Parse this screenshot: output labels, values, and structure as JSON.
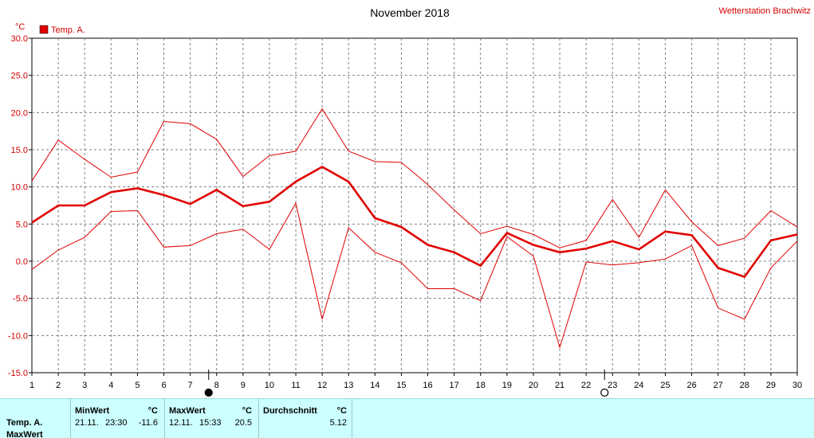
{
  "header": {
    "title": "November 2018",
    "station": "Wetterstation Brachwitz",
    "unit": "°C"
  },
  "chart_data": {
    "type": "line",
    "title": "November 2018",
    "ylabel": "°C",
    "xlim": [
      1,
      30
    ],
    "ylim": [
      -15,
      30
    ],
    "x_ticks": [
      1,
      2,
      3,
      4,
      5,
      6,
      7,
      8,
      9,
      10,
      11,
      12,
      13,
      14,
      15,
      16,
      17,
      18,
      19,
      20,
      21,
      22,
      23,
      24,
      25,
      26,
      27,
      28,
      29,
      30
    ],
    "y_ticks": [
      -15,
      -10,
      -5,
      0,
      5,
      10,
      15,
      20,
      25,
      30
    ],
    "y_tick_labels": [
      "-15.0",
      "-10.0",
      "-5.0",
      "0.0",
      "5.0",
      "10.0",
      "15.0",
      "20.0",
      "25.0",
      "30.0"
    ],
    "grid": true,
    "legend": {
      "position": "top-left",
      "entries": [
        "Temp. A."
      ]
    },
    "colors": {
      "series": "#e00000",
      "grid": "#808080",
      "axis_text": "#d40000"
    },
    "x": [
      1,
      2,
      3,
      4,
      5,
      6,
      7,
      8,
      9,
      10,
      11,
      12,
      13,
      14,
      15,
      16,
      17,
      18,
      19,
      20,
      21,
      22,
      23,
      24,
      25,
      26,
      27,
      28,
      29,
      30
    ],
    "series": [
      {
        "name": "Temp. A.",
        "role": "mean",
        "values": [
          5.2,
          7.5,
          7.5,
          9.3,
          9.8,
          8.9,
          7.7,
          9.6,
          7.4,
          8.0,
          10.7,
          12.7,
          10.7,
          5.8,
          4.6,
          2.2,
          1.2,
          -0.6,
          3.8,
          2.2,
          1.2,
          1.7,
          2.7,
          1.6,
          4.0,
          3.5,
          -0.9,
          -2.1,
          2.8,
          3.6
        ]
      },
      {
        "role": "max",
        "values": [
          10.8,
          16.3,
          13.7,
          11.3,
          12.0,
          18.8,
          18.5,
          16.4,
          11.4,
          14.2,
          14.8,
          20.5,
          14.8,
          13.4,
          13.3,
          10.3,
          6.9,
          3.7,
          4.7,
          3.6,
          1.8,
          2.8,
          8.3,
          3.2,
          9.6,
          5.3,
          2.1,
          3.1,
          6.8,
          4.6
        ]
      },
      {
        "role": "min",
        "values": [
          -1.1,
          1.5,
          3.2,
          6.7,
          6.8,
          1.9,
          2.1,
          3.7,
          4.3,
          1.6,
          7.8,
          -7.8,
          4.5,
          1.2,
          -0.2,
          -3.7,
          -3.7,
          -5.3,
          3.3,
          0.7,
          -11.6,
          -0.1,
          -0.5,
          -0.2,
          0.3,
          2.1,
          -6.3,
          -7.8,
          -0.9,
          2.7
        ]
      }
    ],
    "moon_phases": [
      {
        "day": 8,
        "phase": "new-moon"
      },
      {
        "day": 23,
        "phase": "full-moon"
      }
    ]
  },
  "stats": {
    "row_label": "Temp. A.",
    "row_label_2": "MaxWert",
    "min": {
      "header": "MinWert",
      "unit": "°C",
      "date": "21.11.",
      "time": "23:30",
      "value": "-11.6"
    },
    "max": {
      "header": "MaxWert",
      "unit": "°C",
      "date": "12.11.",
      "time": "15:33",
      "value": "20.5"
    },
    "avg": {
      "header": "Durchschnitt",
      "unit": "°C",
      "value": "5.12"
    }
  }
}
